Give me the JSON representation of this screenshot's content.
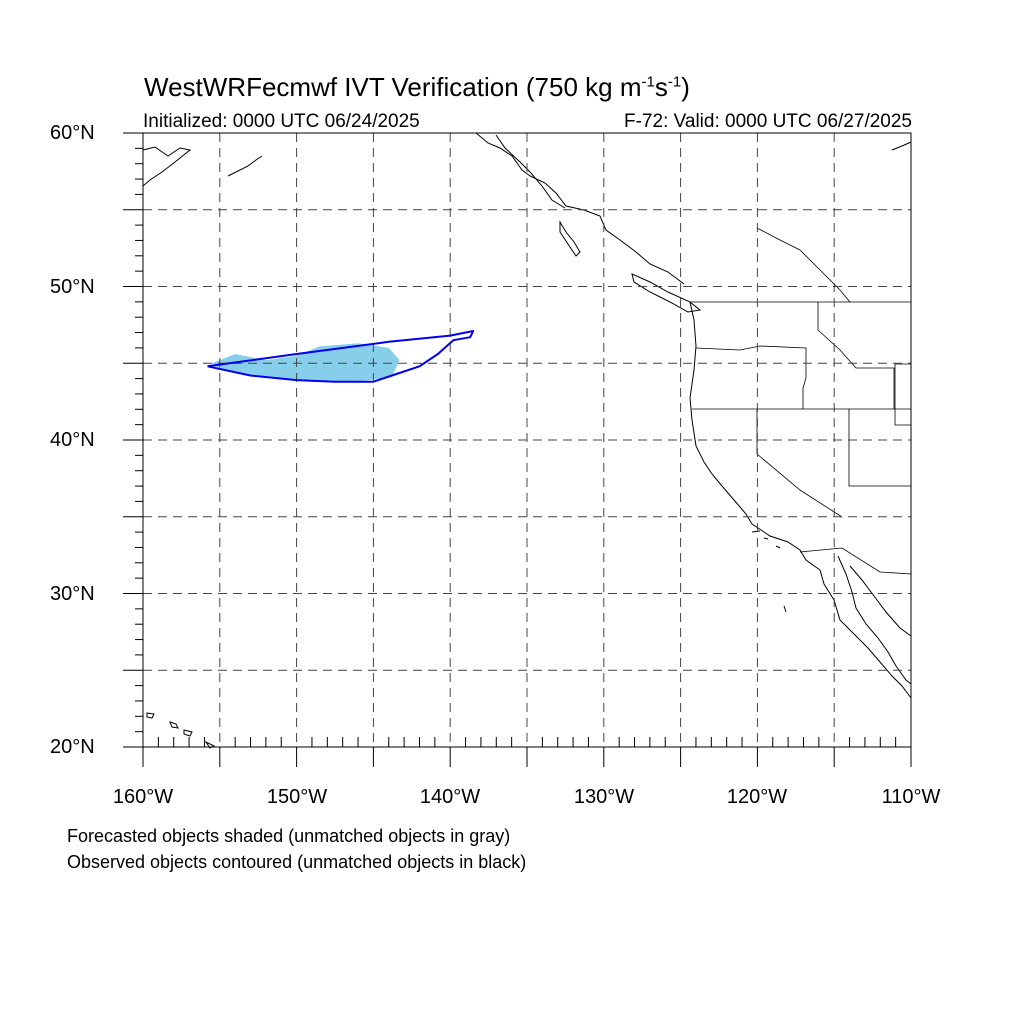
{
  "title": {
    "main": "WestWRFecmwf IVT Verification (750 kg m",
    "exp1": "-1",
    "mid": "s",
    "exp2": "-1",
    "end": ")"
  },
  "subtitle": {
    "initialized": "Initialized: 0000 UTC 06/24/2025",
    "valid": "F-72: Valid: 0000 UTC 06/27/2025"
  },
  "map": {
    "extent": {
      "lon_min": -160,
      "lon_max": -110,
      "lat_min": 20,
      "lat_max": 60
    },
    "grid_step_deg": 5,
    "lat_labels": [
      "60°N",
      "50°N",
      "40°N",
      "30°N",
      "20°N"
    ],
    "lon_labels": [
      "160°W",
      "150°W",
      "140°W",
      "130°W",
      "120°W",
      "110°W"
    ],
    "colors": {
      "forecast_fill": "#87ceeb",
      "observed_contour": "#0000ee",
      "coastline": "#000000",
      "grid": "#444444"
    },
    "forecast_object_lonlat": [
      [
        -155.5,
        45.0
      ],
      [
        -154.0,
        45.6
      ],
      [
        -152.0,
        45.2
      ],
      [
        -150.0,
        45.5
      ],
      [
        -148.5,
        46.1
      ],
      [
        -146.0,
        46.3
      ],
      [
        -144.0,
        46.0
      ],
      [
        -143.3,
        45.2
      ],
      [
        -143.8,
        44.1
      ],
      [
        -146.0,
        43.8
      ],
      [
        -149.0,
        43.8
      ],
      [
        -152.0,
        44.1
      ],
      [
        -155.0,
        44.6
      ]
    ],
    "observed_object_lonlat": [
      [
        -155.8,
        44.8
      ],
      [
        -150.0,
        45.6
      ],
      [
        -144.0,
        46.4
      ],
      [
        -140.0,
        46.8
      ],
      [
        -138.5,
        47.1
      ],
      [
        -138.7,
        46.7
      ],
      [
        -139.8,
        46.5
      ],
      [
        -140.8,
        45.6
      ],
      [
        -142.0,
        44.8
      ],
      [
        -143.5,
        44.3
      ],
      [
        -145.0,
        43.8
      ],
      [
        -147.5,
        43.8
      ],
      [
        -150.0,
        43.9
      ],
      [
        -153.0,
        44.2
      ],
      [
        -155.8,
        44.8
      ]
    ]
  },
  "notes": {
    "forecast": "Forecasted objects shaded (unmatched objects in gray)",
    "observed": "Observed objects contoured (unmatched objects in black)"
  }
}
